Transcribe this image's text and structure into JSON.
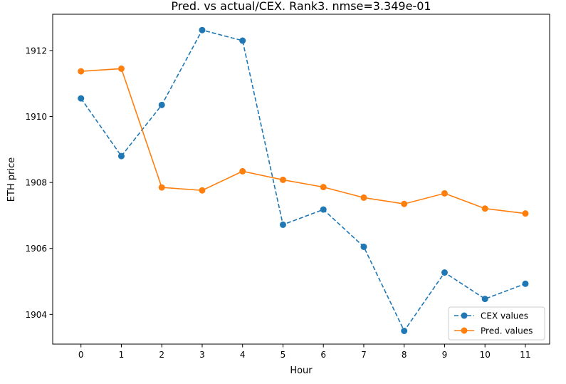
{
  "chart_data": {
    "type": "line",
    "title": "Pred. vs actual/CEX. Rank3. nmse=3.349e-01",
    "xlabel": "Hour",
    "ylabel": "ETH price",
    "x": [
      0,
      1,
      2,
      3,
      4,
      5,
      6,
      7,
      8,
      9,
      10,
      11
    ],
    "x_ticks": [
      0,
      1,
      2,
      3,
      4,
      5,
      6,
      7,
      8,
      9,
      10,
      11
    ],
    "y_ticks": [
      1904,
      1906,
      1908,
      1910,
      1912
    ],
    "xlim": [
      -0.7,
      11.6
    ],
    "ylim": [
      1903.1,
      1913.1
    ],
    "grid": false,
    "legend_position": "lower-right",
    "series": [
      {
        "name": "CEX values",
        "color": "#1f77b4",
        "line_style": "dashed",
        "marker": "circle",
        "values": [
          1910.55,
          1908.8,
          1910.35,
          1912.62,
          1912.3,
          1906.72,
          1907.18,
          1906.05,
          1903.5,
          1905.27,
          1904.47,
          1904.93
        ]
      },
      {
        "name": "Pred. values",
        "color": "#ff7f0e",
        "line_style": "solid",
        "marker": "circle",
        "values": [
          1911.37,
          1911.45,
          1907.85,
          1907.76,
          1908.34,
          1908.08,
          1907.86,
          1907.54,
          1907.35,
          1907.67,
          1907.21,
          1907.06
        ]
      }
    ]
  }
}
